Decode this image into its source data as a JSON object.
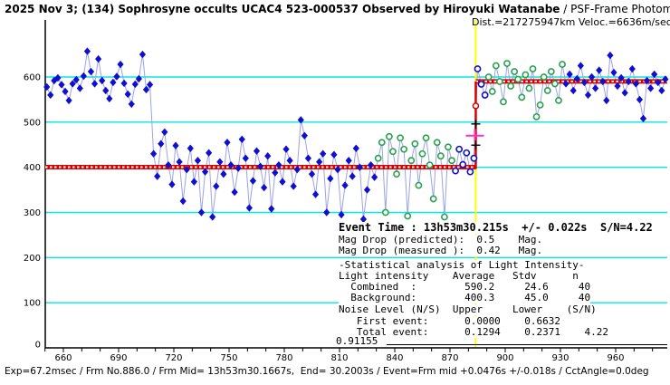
{
  "title": {
    "main": "2025 Nov 3; (134) Sophrosyne occults UCAC4 523-000537 Observed by Hiroyuki Watanabe",
    "suffix": " / PSF-Frame Photometry /",
    "dist_line": "Dist.=217275947km Veloc.=6636m/sec"
  },
  "status_bar": "Exp=67.2msec / Frm No.886.0 / Frm Mid= 13h53m30.1667s,  End= 30.2003s / Event=Frm mid +0.0476s +/-0.018s / CctAngle=0.0deg",
  "stats": {
    "event_time_line": "Event Time : 13h53m30.215s  +/- 0.022s  S/N=4.22",
    "lines": [
      "Mag Drop (predicted):  0.5    Mag.",
      "Mag Drop (measured ):  0.42   Mag.",
      "-Statistical analysis of Light Intensity-",
      "Light intensity    Average   Stdv      n",
      "  Combined  :        590.2     24.6     40",
      "  Background:        400.3     45.0     40",
      "Noise Level (N/S)  Upper     Lower    (S/N)",
      "   First event:      0.0000    0.6632",
      "   Total event:      0.1294    0.2371    4.22"
    ],
    "residual_value": "0.91155"
  },
  "colors": {
    "background": "#ffffff",
    "blue_point": "#0f0fd0",
    "connector": "#9aa3e6",
    "green_point": "#2aa14e",
    "gridline_cyan": "#00e8e8",
    "fit_red": "#d90000",
    "event_line_yellow": "#ffff00",
    "event_cross_magenta": "#ff2fc0",
    "text": "#000000"
  },
  "chart_data": {
    "type": "scatter",
    "title": "Occultation light curve (frame intensity vs frame number)",
    "xlabel": "Frame number",
    "ylabel": "Light intensity",
    "xlim": [
      650,
      988
    ],
    "ylim": [
      0,
      700
    ],
    "x_ticks": [
      660,
      690,
      720,
      750,
      780,
      810,
      840,
      870,
      900,
      930,
      960
    ],
    "x_minor_tick_step": 10,
    "y_ticks": [
      0,
      100,
      200,
      300,
      400,
      500,
      600
    ],
    "grid": "horizontal-cyan",
    "fit": {
      "background_level": 400.3,
      "combined_level": 590.2,
      "event_frame": 884,
      "event_marker": {
        "magenta_cross_level": 470,
        "upper_tick_level": 496,
        "lower_tick_level": 449,
        "red_circle_level": 536
      }
    },
    "marker_legend": {
      "d": "star intensity (blue filled diamond)",
      "g": "event-region point (green open circle)",
      "o": "edge point excluded (blue open circle)"
    },
    "points": [
      [
        651,
        578,
        "d"
      ],
      [
        653,
        560,
        "d"
      ],
      [
        655,
        592,
        "d"
      ],
      [
        657,
        598,
        "d"
      ],
      [
        659,
        583,
        "d"
      ],
      [
        661,
        568,
        "d"
      ],
      [
        663,
        548,
        "d"
      ],
      [
        665,
        585,
        "d"
      ],
      [
        667,
        594,
        "d"
      ],
      [
        669,
        575,
        "d"
      ],
      [
        671,
        602,
        "d"
      ],
      [
        673,
        657,
        "d"
      ],
      [
        675,
        612,
        "d"
      ],
      [
        677,
        585,
        "d"
      ],
      [
        679,
        640,
        "d"
      ],
      [
        681,
        592,
        "d"
      ],
      [
        683,
        570,
        "d"
      ],
      [
        685,
        552,
        "d"
      ],
      [
        687,
        588,
        "d"
      ],
      [
        689,
        601,
        "d"
      ],
      [
        691,
        628,
        "d"
      ],
      [
        693,
        586,
        "d"
      ],
      [
        695,
        562,
        "d"
      ],
      [
        697,
        540,
        "d"
      ],
      [
        699,
        584,
        "d"
      ],
      [
        701,
        596,
        "d"
      ],
      [
        703,
        650,
        "d"
      ],
      [
        705,
        572,
        "d"
      ],
      [
        707,
        583,
        "d"
      ],
      [
        709,
        430,
        "d"
      ],
      [
        711,
        380,
        "d"
      ],
      [
        713,
        452,
        "d"
      ],
      [
        715,
        478,
        "d"
      ],
      [
        717,
        405,
        "d"
      ],
      [
        719,
        362,
        "d"
      ],
      [
        721,
        448,
        "d"
      ],
      [
        723,
        412,
        "d"
      ],
      [
        725,
        325,
        "d"
      ],
      [
        727,
        395,
        "d"
      ],
      [
        729,
        442,
        "d"
      ],
      [
        731,
        368,
        "d"
      ],
      [
        733,
        415,
        "d"
      ],
      [
        735,
        300,
        "d"
      ],
      [
        737,
        390,
        "d"
      ],
      [
        739,
        432,
        "d"
      ],
      [
        741,
        290,
        "d"
      ],
      [
        743,
        358,
        "d"
      ],
      [
        745,
        412,
        "d"
      ],
      [
        747,
        385,
        "d"
      ],
      [
        749,
        455,
        "d"
      ],
      [
        751,
        405,
        "d"
      ],
      [
        753,
        345,
        "d"
      ],
      [
        755,
        398,
        "d"
      ],
      [
        757,
        462,
        "d"
      ],
      [
        759,
        420,
        "d"
      ],
      [
        761,
        310,
        "d"
      ],
      [
        763,
        370,
        "d"
      ],
      [
        765,
        436,
        "d"
      ],
      [
        767,
        402,
        "d"
      ],
      [
        769,
        355,
        "d"
      ],
      [
        771,
        425,
        "d"
      ],
      [
        773,
        308,
        "d"
      ],
      [
        775,
        388,
        "d"
      ],
      [
        777,
        405,
        "d"
      ],
      [
        779,
        368,
        "d"
      ],
      [
        781,
        440,
        "d"
      ],
      [
        783,
        415,
        "d"
      ],
      [
        785,
        358,
        "d"
      ],
      [
        787,
        395,
        "d"
      ],
      [
        789,
        505,
        "d"
      ],
      [
        791,
        470,
        "d"
      ],
      [
        793,
        420,
        "d"
      ],
      [
        795,
        385,
        "d"
      ],
      [
        797,
        340,
        "d"
      ],
      [
        799,
        412,
        "d"
      ],
      [
        801,
        430,
        "d"
      ],
      [
        803,
        300,
        "d"
      ],
      [
        805,
        375,
        "d"
      ],
      [
        807,
        428,
        "d"
      ],
      [
        809,
        395,
        "d"
      ],
      [
        811,
        295,
        "d"
      ],
      [
        813,
        360,
        "d"
      ],
      [
        815,
        415,
        "d"
      ],
      [
        817,
        380,
        "d"
      ],
      [
        819,
        442,
        "d"
      ],
      [
        821,
        400,
        "d"
      ],
      [
        823,
        285,
        "d"
      ],
      [
        825,
        350,
        "d"
      ],
      [
        827,
        405,
        "d"
      ],
      [
        829,
        378,
        "d"
      ],
      [
        831,
        420,
        "g"
      ],
      [
        833,
        455,
        "g"
      ],
      [
        835,
        300,
        "g"
      ],
      [
        837,
        468,
        "g"
      ],
      [
        839,
        435,
        "g"
      ],
      [
        841,
        385,
        "g"
      ],
      [
        843,
        465,
        "g"
      ],
      [
        845,
        440,
        "g"
      ],
      [
        847,
        292,
        "g"
      ],
      [
        849,
        415,
        "g"
      ],
      [
        851,
        452,
        "g"
      ],
      [
        853,
        360,
        "g"
      ],
      [
        855,
        430,
        "g"
      ],
      [
        857,
        465,
        "g"
      ],
      [
        859,
        405,
        "g"
      ],
      [
        861,
        330,
        "g"
      ],
      [
        863,
        455,
        "g"
      ],
      [
        865,
        425,
        "g"
      ],
      [
        867,
        290,
        "g"
      ],
      [
        869,
        445,
        "g"
      ],
      [
        871,
        415,
        "g"
      ],
      [
        873,
        392,
        "o"
      ],
      [
        875,
        440,
        "o"
      ],
      [
        877,
        406,
        "o"
      ],
      [
        879,
        432,
        "o"
      ],
      [
        881,
        390,
        "o"
      ],
      [
        883,
        420,
        "o"
      ],
      [
        885,
        618,
        "o"
      ],
      [
        887,
        584,
        "o"
      ],
      [
        889,
        560,
        "o"
      ],
      [
        891,
        600,
        "g"
      ],
      [
        893,
        568,
        "g"
      ],
      [
        895,
        625,
        "g"
      ],
      [
        897,
        590,
        "g"
      ],
      [
        899,
        545,
        "g"
      ],
      [
        901,
        630,
        "g"
      ],
      [
        903,
        580,
        "g"
      ],
      [
        905,
        612,
        "g"
      ],
      [
        907,
        595,
        "g"
      ],
      [
        909,
        555,
        "g"
      ],
      [
        911,
        605,
        "g"
      ],
      [
        913,
        575,
        "g"
      ],
      [
        915,
        618,
        "g"
      ],
      [
        917,
        512,
        "g"
      ],
      [
        919,
        538,
        "g"
      ],
      [
        921,
        600,
        "g"
      ],
      [
        923,
        570,
        "g"
      ],
      [
        925,
        612,
        "g"
      ],
      [
        927,
        585,
        "g"
      ],
      [
        929,
        548,
        "g"
      ],
      [
        931,
        628,
        "g"
      ],
      [
        933,
        585,
        "d"
      ],
      [
        935,
        606,
        "d"
      ],
      [
        937,
        570,
        "d"
      ],
      [
        939,
        596,
        "d"
      ],
      [
        941,
        625,
        "d"
      ],
      [
        943,
        588,
        "d"
      ],
      [
        945,
        560,
        "d"
      ],
      [
        947,
        600,
        "d"
      ],
      [
        949,
        575,
        "d"
      ],
      [
        951,
        615,
        "d"
      ],
      [
        953,
        590,
        "d"
      ],
      [
        955,
        548,
        "d"
      ],
      [
        957,
        648,
        "d"
      ],
      [
        959,
        610,
        "d"
      ],
      [
        961,
        580,
        "d"
      ],
      [
        963,
        598,
        "d"
      ],
      [
        965,
        565,
        "d"
      ],
      [
        967,
        590,
        "d"
      ],
      [
        969,
        618,
        "d"
      ],
      [
        971,
        585,
        "d"
      ],
      [
        973,
        550,
        "d"
      ],
      [
        975,
        508,
        "d"
      ],
      [
        977,
        592,
        "d"
      ],
      [
        979,
        575,
        "d"
      ],
      [
        981,
        606,
        "d"
      ],
      [
        983,
        588,
        "d"
      ],
      [
        985,
        570,
        "d"
      ],
      [
        987,
        595,
        "d"
      ]
    ]
  }
}
